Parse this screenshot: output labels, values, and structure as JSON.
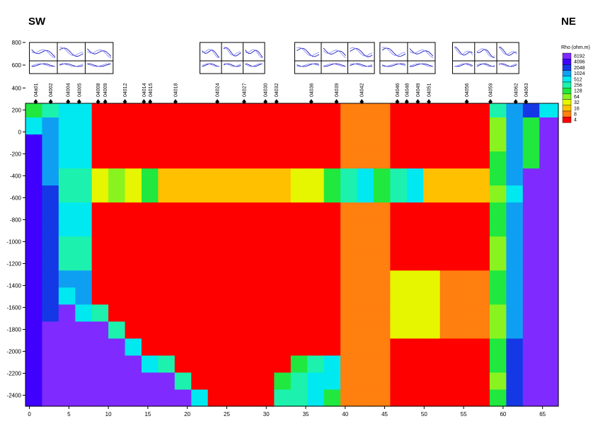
{
  "labels": {
    "left": "SW",
    "right": "NE"
  },
  "legend": {
    "title": "Rho (ohm.m)",
    "entries": [
      {
        "label": "8192",
        "color": "#7f2bff"
      },
      {
        "label": "4096",
        "color": "#3f00ff"
      },
      {
        "label": "2048",
        "color": "#1538e6"
      },
      {
        "label": "1024",
        "color": "#0f9ff2"
      },
      {
        "label": "512",
        "color": "#00e8f0"
      },
      {
        "label": "256",
        "color": "#1cf2ad"
      },
      {
        "label": "128",
        "color": "#20e83f"
      },
      {
        "label": "64",
        "color": "#89f320"
      },
      {
        "label": "32",
        "color": "#e6f500"
      },
      {
        "label": "16",
        "color": "#ffc000"
      },
      {
        "label": "8",
        "color": "#ff7f0f"
      },
      {
        "label": "4",
        "color": "#ff0000"
      }
    ]
  },
  "chart_data": {
    "type": "heatmap",
    "x_ticks": [
      0,
      5,
      10,
      15,
      20,
      25,
      30,
      35,
      40,
      45,
      50,
      55,
      60,
      65
    ],
    "y_ticks": [
      400,
      200,
      0,
      -200,
      -400,
      -600,
      -800,
      -1000,
      -1200,
      -1400,
      -1600,
      -1800,
      -2000,
      -2200,
      -2400
    ],
    "top_y_ticks": [
      800,
      600
    ],
    "xlim": [
      -0.5,
      67
    ],
    "ylim": [
      -2500,
      260
    ],
    "stations": [
      {
        "name": "04a01",
        "x": 0.8
      },
      {
        "name": "04002",
        "x": 2.7
      },
      {
        "name": "04004",
        "x": 4.9
      },
      {
        "name": "04005",
        "x": 6.3
      },
      {
        "name": "04008",
        "x": 8.7
      },
      {
        "name": "04009",
        "x": 9.6
      },
      {
        "name": "04012",
        "x": 12.1
      },
      {
        "name": "04014",
        "x": 14.5
      },
      {
        "name": "04015",
        "x": 15.3
      },
      {
        "name": "04018",
        "x": 18.5
      },
      {
        "name": "04024",
        "x": 23.8
      },
      {
        "name": "04027",
        "x": 27.2
      },
      {
        "name": "04030",
        "x": 29.9
      },
      {
        "name": "04032",
        "x": 31.3
      },
      {
        "name": "04036",
        "x": 35.7
      },
      {
        "name": "04039",
        "x": 38.9
      },
      {
        "name": "04042",
        "x": 42.1
      },
      {
        "name": "04046",
        "x": 46.6
      },
      {
        "name": "04048",
        "x": 47.8
      },
      {
        "name": "04049",
        "x": 49.2
      },
      {
        "name": "04051",
        "x": 50.6
      },
      {
        "name": "04056",
        "x": 55.4
      },
      {
        "name": "04059",
        "x": 58.4
      },
      {
        "name": "04062",
        "x": 61.6
      },
      {
        "name": "04063",
        "x": 62.9
      }
    ]
  }
}
